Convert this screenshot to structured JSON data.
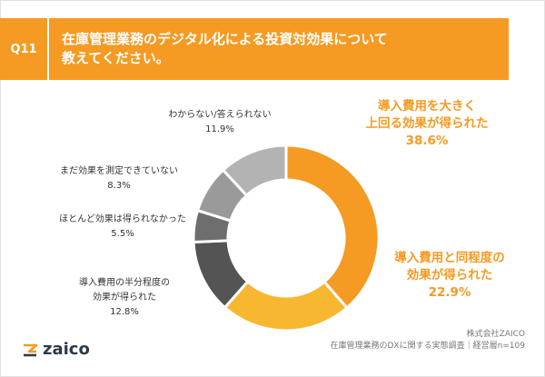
{
  "header": {
    "badge": "Q11",
    "title_line1": "在庫管理業務のデジタル化による投資対効果について",
    "title_line2": "教えてください。"
  },
  "colors": {
    "accent": "#f59a23",
    "yellow": "#f7b731",
    "gray_dark": "#545454",
    "gray_mid": "#6e6e6e",
    "gray_light": "#9a9a9a",
    "gray_lighter": "#b3b3b3"
  },
  "chart_data": {
    "type": "pie",
    "donut": true,
    "slices": [
      {
        "label_line1": "導入費用を大きく",
        "label_line2": "上回る効果が得られた",
        "value": 38.6,
        "value_text": "38.6%",
        "color": "#f59a23"
      },
      {
        "label_line1": "導入費用と同程度の",
        "label_line2": "効果が得られた",
        "value": 22.9,
        "value_text": "22.9%",
        "color": "#f7b731"
      },
      {
        "label_line1": "導入費用の半分程度の",
        "label_line2": "効果が得られた",
        "value": 12.8,
        "value_text": "12.8%",
        "color": "#545454"
      },
      {
        "label_line1": "ほとんど効果は得られなかった",
        "label_line2": "",
        "value": 5.5,
        "value_text": "5.5%",
        "color": "#6e6e6e"
      },
      {
        "label_line1": "まだ効果を測定できていない",
        "label_line2": "",
        "value": 8.3,
        "value_text": "8.3%",
        "color": "#9a9a9a"
      },
      {
        "label_line1": "わからない/答えられない",
        "label_line2": "",
        "value": 11.9,
        "value_text": "11.9%",
        "color": "#b3b3b3"
      }
    ]
  },
  "footer": {
    "company": "株式会社ZAICO",
    "survey": "在庫管理業務のDXに関する実態調査｜経営層n=109"
  },
  "logo": {
    "text": "zaico",
    "icon": "zaico-logo-icon"
  }
}
